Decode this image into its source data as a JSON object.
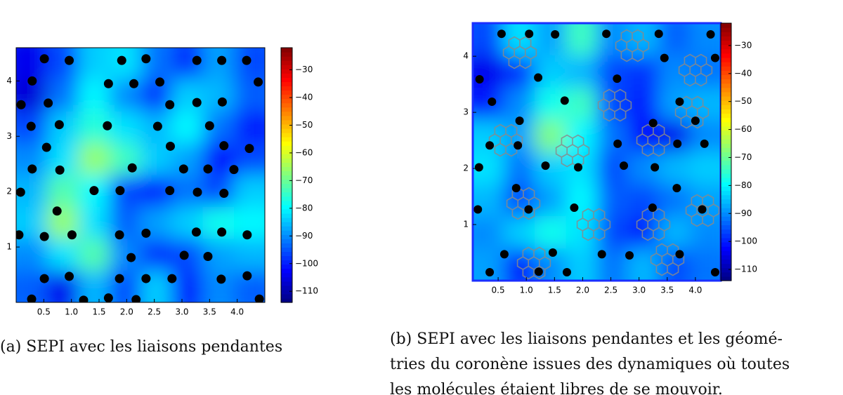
{
  "chart_data": [
    {
      "type": "heatmap",
      "x": [
        0.51,
        0.96,
        1.91,
        2.35,
        3.27,
        3.72,
        4.17,
        0.29,
        1.67,
        2.13,
        2.6,
        4.38,
        0.09,
        0.58,
        2.78,
        3.27,
        3.73,
        0.27,
        0.78,
        1.65,
        2.56,
        3.5,
        0.55,
        2.79,
        3.76,
        4.22,
        0.29,
        0.79,
        2.1,
        3.03,
        3.47,
        3.94,
        0.08,
        1.41,
        1.88,
        2.78,
        3.28,
        3.76,
        0.74,
        0.05,
        0.51,
        1.01,
        1.87,
        2.35,
        3.26,
        3.72,
        4.18,
        2.08,
        3.04,
        3.47,
        0.51,
        0.96,
        1.87,
        2.35,
        2.82,
        3.71,
        4.18,
        0.28,
        1.22,
        1.67,
        2.17,
        4.4
      ],
      "y": [
        4.4,
        4.37,
        4.37,
        4.4,
        4.37,
        4.37,
        4.37,
        4.0,
        3.95,
        3.95,
        3.98,
        3.98,
        3.57,
        3.6,
        3.57,
        3.61,
        3.62,
        3.18,
        3.21,
        3.19,
        3.18,
        3.19,
        2.8,
        2.82,
        2.83,
        2.78,
        2.41,
        2.39,
        2.43,
        2.41,
        2.41,
        2.4,
        1.99,
        2.02,
        2.02,
        2.02,
        1.99,
        1.97,
        1.65,
        1.22,
        1.19,
        1.22,
        1.22,
        1.25,
        1.27,
        1.27,
        1.22,
        0.81,
        0.85,
        0.83,
        0.43,
        0.47,
        0.43,
        0.43,
        0.43,
        0.42,
        0.48,
        0.06,
        0.04,
        0.08,
        0.05,
        0.06
      ],
      "z": [
        [
          -104,
          -96,
          -84,
          -82,
          -92,
          -98,
          -88,
          -96
        ],
        [
          -106,
          -92,
          -80,
          -90,
          -98,
          -84,
          -86,
          -94
        ],
        [
          -96,
          -84,
          -76,
          -82,
          -86,
          -80,
          -92,
          -100
        ],
        [
          -90,
          -82,
          -66,
          -74,
          -84,
          -88,
          -102,
          -96
        ],
        [
          -86,
          -72,
          -80,
          -96,
          -100,
          -92,
          -96,
          -84
        ],
        [
          -84,
          -66,
          -82,
          -94,
          -88,
          -84,
          -78,
          -80
        ],
        [
          -90,
          -82,
          -72,
          -90,
          -98,
          -96,
          -88,
          -86
        ],
        [
          -94,
          -104,
          -86,
          -96,
          -84,
          -100,
          -90,
          -94
        ]
      ],
      "xlim": [
        0,
        4.5
      ],
      "ylim": [
        0,
        4.6
      ],
      "xticks": [
        0.5,
        {
          "value": 1,
          "label": "1.0"
        },
        1.5,
        {
          "value": 2,
          "label": "2.0"
        },
        2.5,
        {
          "value": 3,
          "label": "3.0"
        },
        3.5,
        {
          "value": 4,
          "label": "4.0"
        }
      ],
      "yticks": [
        1,
        2,
        3,
        4
      ],
      "clim": [
        -114,
        -22
      ],
      "cticks": [
        {
          "value": -30,
          "label": "−30"
        },
        {
          "value": -40,
          "label": "−40"
        },
        {
          "value": -50,
          "label": "−50"
        },
        {
          "value": -60,
          "label": "−60"
        },
        {
          "value": -70,
          "label": "−70"
        },
        {
          "value": -80,
          "label": "−80"
        },
        {
          "value": -90,
          "label": "−90"
        },
        {
          "value": -100,
          "label": "−100"
        },
        {
          "value": -110,
          "label": "−110"
        }
      ],
      "caption": [
        "(a) SEPI avec les liaisons pendantes"
      ]
    },
    {
      "type": "heatmap",
      "x": [
        0.56,
        1.05,
        1.51,
        2.42,
        3.35,
        4.27,
        0.17,
        1.21,
        2.61,
        4.35,
        3.45,
        0.39,
        1.68,
        3.72,
        0.88,
        4.0,
        3.25,
        0.35,
        0.85,
        2.62,
        3.68,
        4.16,
        0.16,
        1.34,
        1.92,
        2.73,
        3.28,
        0.82,
        3.67,
        0.14,
        1.04,
        1.85,
        3.24,
        4.12,
        0.61,
        1.47,
        2.34,
        2.83,
        3.72,
        0.35,
        1.22,
        1.72,
        4.35
      ],
      "y": [
        4.4,
        4.4,
        4.39,
        4.4,
        4.4,
        4.39,
        3.59,
        3.62,
        3.6,
        3.97,
        3.97,
        3.19,
        3.21,
        3.19,
        2.85,
        2.85,
        2.81,
        2.41,
        2.41,
        2.44,
        2.44,
        2.44,
        2.02,
        2.05,
        2.02,
        2.05,
        2.02,
        1.65,
        1.65,
        1.27,
        1.27,
        1.3,
        1.3,
        1.27,
        0.47,
        0.5,
        0.47,
        0.45,
        0.47,
        0.15,
        0.16,
        0.15,
        0.15
      ],
      "z": [
        [
          -96,
          -82,
          -88,
          -74,
          -90,
          -86,
          -94,
          -90
        ],
        [
          -104,
          -98,
          -84,
          -86,
          -96,
          -98,
          -90,
          -92
        ],
        [
          -100,
          -90,
          -78,
          -74,
          -96,
          -100,
          -88,
          -86
        ],
        [
          -84,
          -88,
          -68,
          -80,
          -92,
          -102,
          -104,
          -90
        ],
        [
          -82,
          -92,
          -84,
          -82,
          -96,
          -90,
          -86,
          -84
        ],
        [
          -86,
          -96,
          -88,
          -80,
          -94,
          -96,
          -92,
          -88
        ],
        [
          -90,
          -84,
          -78,
          -82,
          -96,
          -100,
          -86,
          -90
        ],
        [
          -88,
          -100,
          -90,
          -84,
          -92,
          -86,
          -96,
          -92
        ]
      ],
      "xlim": [
        0.05,
        4.45
      ],
      "ylim": [
        0,
        4.59
      ],
      "xticks": [
        0.5,
        {
          "value": 1,
          "label": "1.0"
        },
        1.5,
        {
          "value": 2,
          "label": "2.0"
        },
        2.5,
        {
          "value": 3,
          "label": "3.0"
        },
        3.5,
        {
          "value": 4,
          "label": "4.0"
        }
      ],
      "yticks": [
        1,
        2,
        3,
        4
      ],
      "clim": [
        -114,
        -22
      ],
      "cticks": [
        {
          "value": -30,
          "label": "−30"
        },
        {
          "value": -40,
          "label": "−40"
        },
        {
          "value": -50,
          "label": "−50"
        },
        {
          "value": -60,
          "label": "−60"
        },
        {
          "value": -70,
          "label": "−70"
        },
        {
          "value": -80,
          "label": "−80"
        },
        {
          "value": -90,
          "label": "−90"
        },
        {
          "value": -100,
          "label": "−100"
        },
        {
          "value": -110,
          "label": "−110"
        }
      ],
      "caption": [
        "(b) SEPI avec les liaisons pendantes et les géomé-",
        "tries du coronène issues des dynamiques où toutes",
        "les molécules étaient libres de se mouvoir."
      ]
    }
  ]
}
